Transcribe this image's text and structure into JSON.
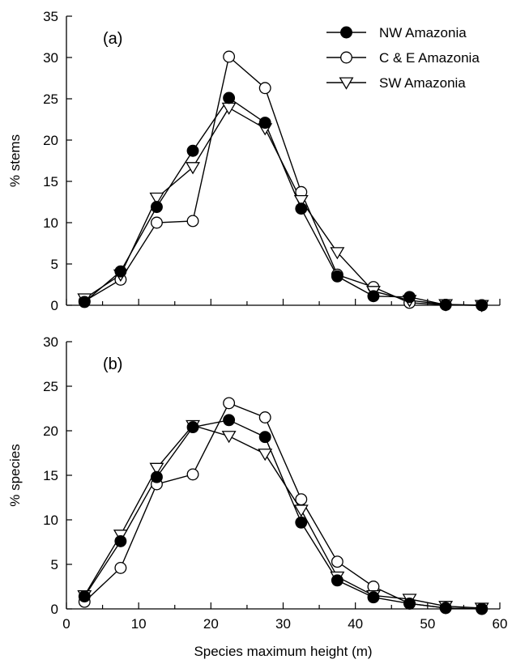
{
  "chart_data": [
    {
      "type": "line",
      "panel_label": "(a)",
      "xlabel": "",
      "ylabel": "% stems",
      "xlim": [
        0,
        60
      ],
      "ylim": [
        0,
        35
      ],
      "x_ticks": [
        "0",
        "10",
        "20",
        "30",
        "40",
        "50",
        "60"
      ],
      "y_ticks": [
        "0",
        "5",
        "10",
        "15",
        "20",
        "25",
        "30",
        "35"
      ],
      "x_tick_labels_shown": false,
      "grid": false,
      "legend_position": "top-right",
      "x": [
        2.5,
        7.5,
        12.5,
        17.5,
        22.5,
        27.5,
        32.5,
        37.5,
        42.5,
        47.5,
        52.5,
        57.5
      ],
      "series": [
        {
          "name": "NW Amazonia",
          "marker": "filled-circle",
          "values": [
            0.4,
            4.1,
            11.9,
            18.7,
            25.1,
            22.1,
            11.7,
            3.5,
            1.1,
            1.0,
            0.05,
            0.0
          ]
        },
        {
          "name": "C & E Amazonia",
          "marker": "open-circle",
          "values": [
            0.5,
            3.1,
            10.0,
            10.2,
            30.1,
            26.3,
            13.7,
            3.7,
            2.2,
            0.3,
            0.05,
            0.0
          ]
        },
        {
          "name": "SW Amazonia",
          "marker": "open-triangle-down",
          "values": [
            0.8,
            3.7,
            13.0,
            16.7,
            23.9,
            21.4,
            12.7,
            6.4,
            1.7,
            0.6,
            0.1,
            0.0
          ]
        }
      ]
    },
    {
      "type": "line",
      "panel_label": "(b)",
      "xlabel": "Species maximum height (m)",
      "ylabel": "% species",
      "xlim": [
        0,
        60
      ],
      "ylim": [
        0,
        30
      ],
      "x_ticks": [
        "0",
        "10",
        "20",
        "30",
        "40",
        "50",
        "60"
      ],
      "y_ticks": [
        "0",
        "5",
        "10",
        "15",
        "20",
        "25",
        "30"
      ],
      "x_tick_labels_shown": true,
      "grid": false,
      "x": [
        2.5,
        7.5,
        12.5,
        17.5,
        22.5,
        27.5,
        32.5,
        37.5,
        42.5,
        47.5,
        52.5,
        57.5
      ],
      "series": [
        {
          "name": "NW Amazonia",
          "marker": "filled-circle",
          "values": [
            1.4,
            7.6,
            14.8,
            20.4,
            21.2,
            19.3,
            9.7,
            3.2,
            1.3,
            0.6,
            0.1,
            0.0
          ]
        },
        {
          "name": "C & E Amazonia",
          "marker": "open-circle",
          "values": [
            0.8,
            4.6,
            14.0,
            15.1,
            23.1,
            21.5,
            12.3,
            5.3,
            2.5,
            0.6,
            0.1,
            0.0
          ]
        },
        {
          "name": "SW Amazonia",
          "marker": "open-triangle-down",
          "values": [
            1.5,
            8.3,
            15.8,
            20.6,
            19.4,
            17.4,
            11.1,
            3.6,
            1.5,
            1.1,
            0.3,
            0.1
          ]
        }
      ]
    }
  ]
}
